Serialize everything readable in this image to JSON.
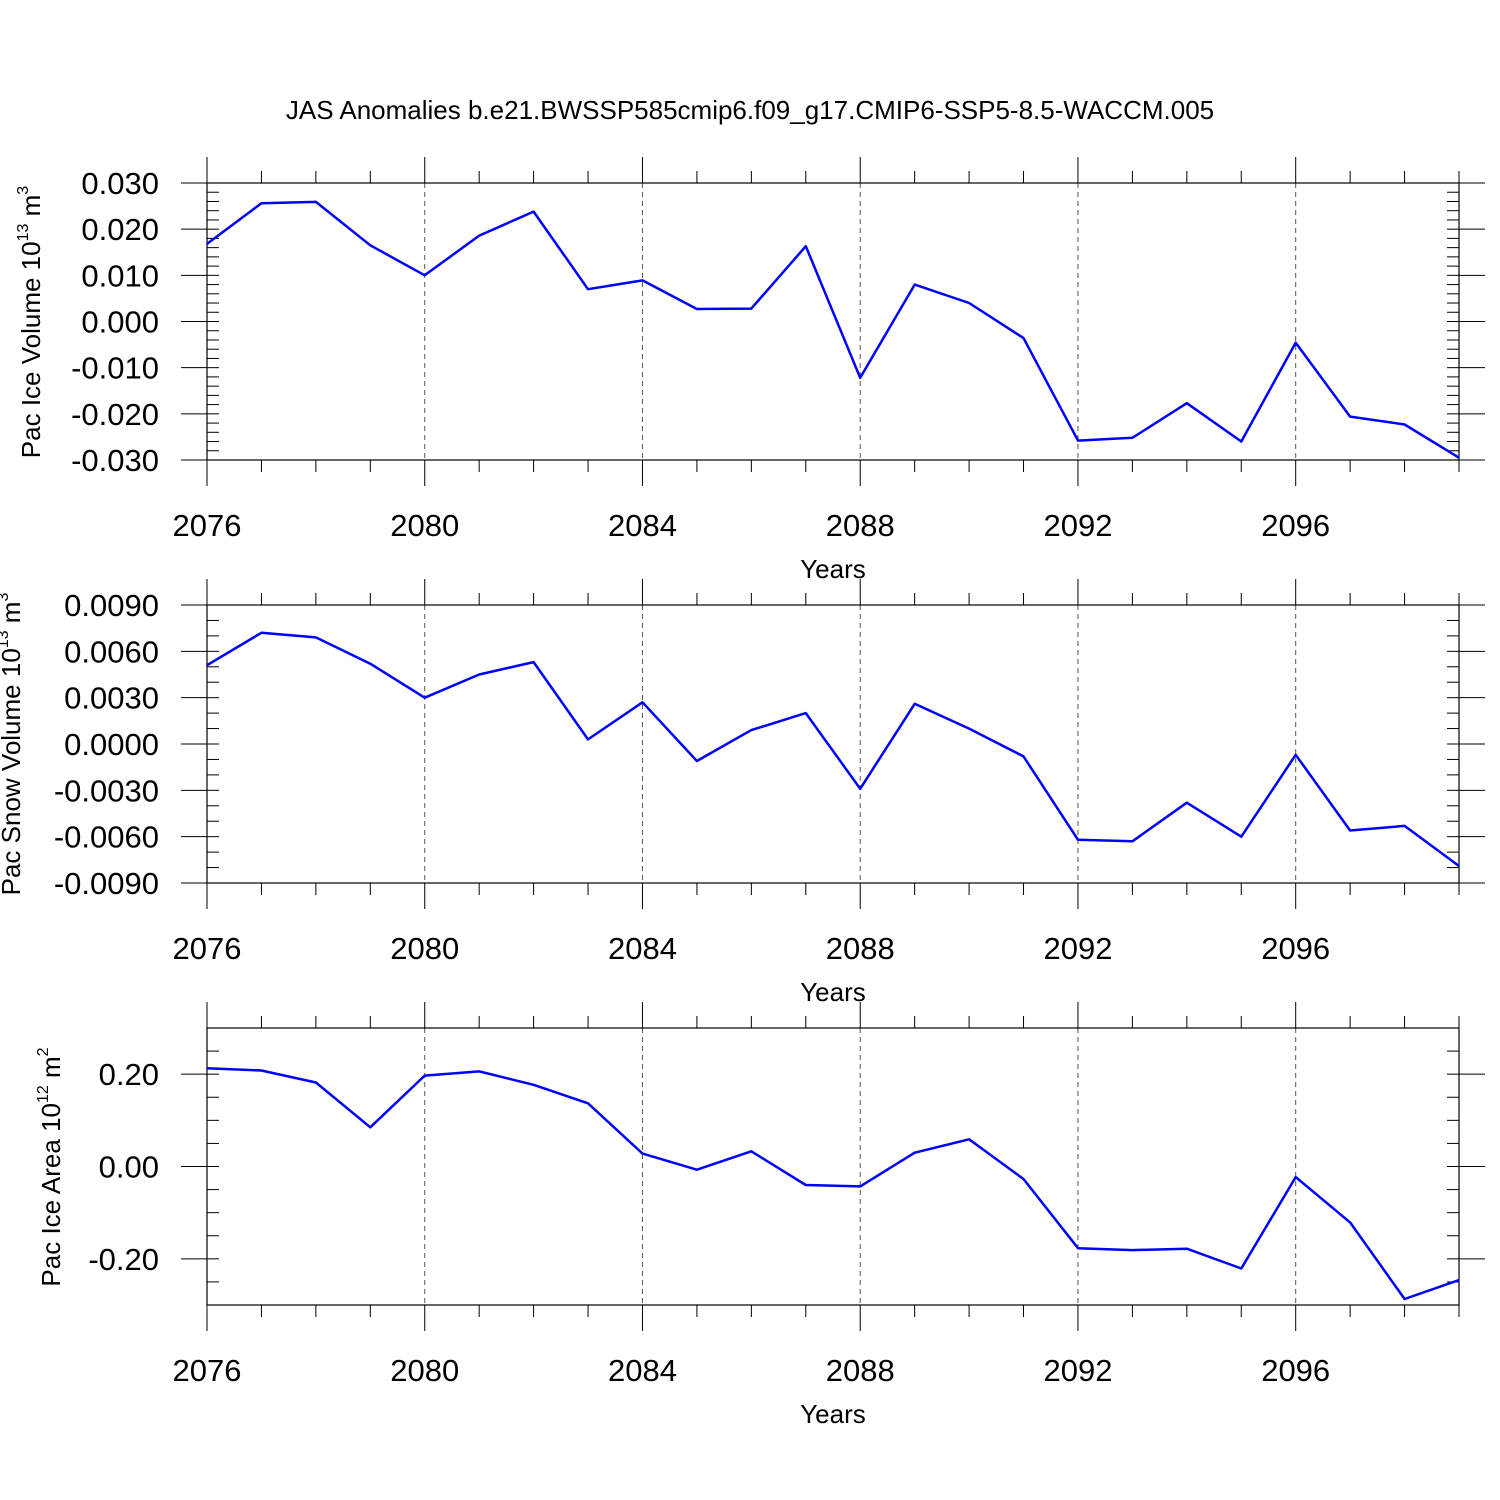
{
  "title": "JAS Anomalies b.e21.BWSSP585cmip6.f09_g17.CMIP6-SSP5-8.5-WACCM.005",
  "colors": {
    "line": "#0000ff",
    "axis": "#000000",
    "grid": "#555555"
  },
  "chart_data": [
    {
      "type": "line",
      "ylabel_parts": {
        "prefix": "Pac Ice Volume 10",
        "exp1": "13",
        "mid": " m",
        "exp2": "3"
      },
      "xlabel": "Years",
      "xlim": [
        2076,
        2099
      ],
      "ylim": [
        -0.03,
        0.03
      ],
      "yticks": [
        0.03,
        0.02,
        0.01,
        0.0,
        -0.01,
        -0.02,
        -0.03
      ],
      "ytick_labels": [
        "0.030",
        "0.020",
        "0.010",
        "0.000",
        "-0.010",
        "-0.020",
        "-0.030"
      ],
      "yminor_step": 0.002,
      "xticks": [
        2076,
        2080,
        2084,
        2088,
        2092,
        2096
      ],
      "xtick_labels": [
        "2076",
        "2080",
        "2084",
        "2088",
        "2092",
        "2096"
      ],
      "x": [
        2076,
        2077,
        2078,
        2079,
        2080,
        2081,
        2082,
        2083,
        2084,
        2085,
        2086,
        2087,
        2088,
        2089,
        2090,
        2091,
        2092,
        2093,
        2094,
        2095,
        2096,
        2097,
        2098,
        2099
      ],
      "series": [
        {
          "values": [
            0.0168,
            0.0256,
            0.0259,
            0.0165,
            0.01,
            0.0186,
            0.0238,
            0.007,
            0.0089,
            0.0027,
            0.0028,
            0.0163,
            -0.0122,
            0.008,
            0.004,
            -0.0036,
            -0.0258,
            -0.0252,
            -0.0177,
            -0.026,
            -0.0046,
            -0.0206,
            -0.0223,
            -0.0295
          ]
        }
      ],
      "grid": "vertical dashed at major x ticks"
    },
    {
      "type": "line",
      "ylabel_parts": {
        "prefix": "Pac Snow Volume 10",
        "exp1": "13",
        "mid": " m",
        "exp2": "3"
      },
      "xlabel": "Years",
      "xlim": [
        2076,
        2099
      ],
      "ylim": [
        -0.009,
        0.009
      ],
      "yticks": [
        0.009,
        0.006,
        0.003,
        0.0,
        -0.003,
        -0.006,
        -0.009
      ],
      "ytick_labels": [
        "0.0090",
        "0.0060",
        "0.0030",
        "0.0000",
        "-0.0030",
        "-0.0060",
        "-0.0090"
      ],
      "yminor_step": 0.001,
      "xticks": [
        2076,
        2080,
        2084,
        2088,
        2092,
        2096
      ],
      "xtick_labels": [
        "2076",
        "2080",
        "2084",
        "2088",
        "2092",
        "2096"
      ],
      "x": [
        2076,
        2077,
        2078,
        2079,
        2080,
        2081,
        2082,
        2083,
        2084,
        2085,
        2086,
        2087,
        2088,
        2089,
        2090,
        2091,
        2092,
        2093,
        2094,
        2095,
        2096,
        2097,
        2098,
        2099
      ],
      "series": [
        {
          "values": [
            0.0051,
            0.0072,
            0.0069,
            0.0052,
            0.003,
            0.0045,
            0.0053,
            0.0003,
            0.0027,
            -0.0011,
            0.0009,
            0.002,
            -0.0029,
            0.0026,
            0.001,
            -0.0008,
            -0.0062,
            -0.0063,
            -0.0038,
            -0.006,
            -0.0007,
            -0.0056,
            -0.0053,
            -0.0079
          ]
        }
      ],
      "grid": "vertical dashed at major x ticks"
    },
    {
      "type": "line",
      "ylabel_parts": {
        "prefix": "Pac Ice Area 10",
        "exp1": "12",
        "mid": " m",
        "exp2": "2"
      },
      "xlabel": "Years",
      "xlim": [
        2076,
        2099
      ],
      "ylim": [
        -0.3,
        0.3
      ],
      "yticks": [
        0.2,
        0.0,
        -0.2
      ],
      "ytick_labels": [
        "0.20",
        "0.00",
        "-0.20"
      ],
      "yminor_step": 0.05,
      "xticks": [
        2076,
        2080,
        2084,
        2088,
        2092,
        2096
      ],
      "xtick_labels": [
        "2076",
        "2080",
        "2084",
        "2088",
        "2092",
        "2096"
      ],
      "x": [
        2076,
        2077,
        2078,
        2079,
        2080,
        2081,
        2082,
        2083,
        2084,
        2085,
        2086,
        2087,
        2088,
        2089,
        2090,
        2091,
        2092,
        2093,
        2094,
        2095,
        2096,
        2097,
        2098,
        2099
      ],
      "series": [
        {
          "values": [
            0.213,
            0.208,
            0.182,
            0.085,
            0.197,
            0.206,
            0.177,
            0.137,
            0.028,
            -0.007,
            0.033,
            -0.04,
            -0.043,
            0.03,
            0.059,
            -0.027,
            -0.177,
            -0.181,
            -0.178,
            -0.221,
            -0.023,
            -0.121,
            -0.287,
            -0.246
          ]
        }
      ],
      "grid": "vertical dashed at major x ticks"
    }
  ]
}
